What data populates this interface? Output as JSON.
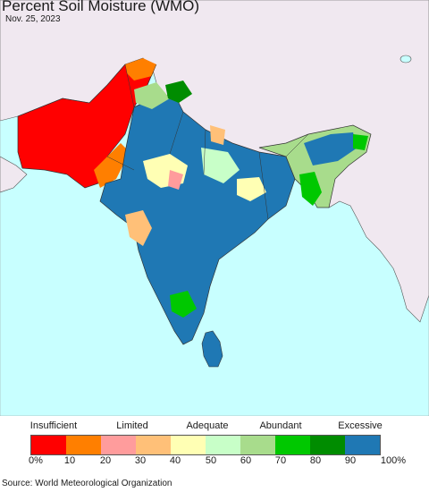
{
  "header": {
    "title": "Percent Soil Moisture (WMO)",
    "date": "Nov. 25, 2023"
  },
  "legend": {
    "categories": [
      "Insufficient",
      "Limited",
      "Adequate",
      "Abundant",
      "Excessive"
    ],
    "colors": [
      "#ff0000",
      "#ff7f00",
      "#ff9c9c",
      "#ffc078",
      "#ffffb4",
      "#c8ffc8",
      "#a8dc8c",
      "#00c800",
      "#008c00",
      "#1f78b4"
    ],
    "ticks": [
      "0%",
      "10",
      "20",
      "30",
      "40",
      "50",
      "60",
      "70",
      "80",
      "90",
      "100%"
    ]
  },
  "palette": {
    "ocean": "#c8ffff",
    "land_nodata": "#f0e8f0",
    "border": "#333333"
  },
  "footer": {
    "source": "Source: World Meteorological Organization"
  }
}
